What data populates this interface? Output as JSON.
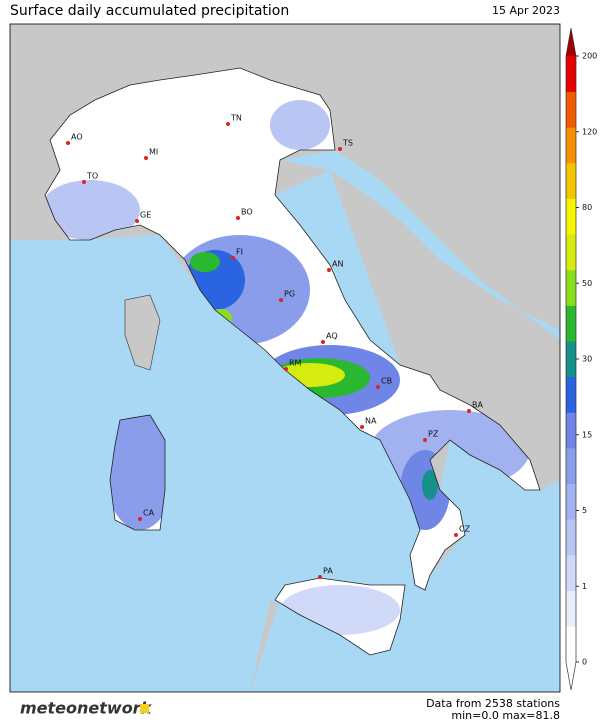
{
  "header": {
    "title": "Surface daily accumulated precipitation",
    "date": "15 Apr 2023"
  },
  "cities": [
    "AO",
    "TO",
    "MI",
    "TN",
    "TS",
    "GE",
    "BO",
    "FI",
    "AN",
    "PG",
    "AQ",
    "RM",
    "CB",
    "BA",
    "NA",
    "PZ",
    "CZ",
    "CA",
    "PA"
  ],
  "colorbar": {
    "ticks": [
      0,
      1,
      5,
      15,
      30,
      50,
      80,
      120,
      200
    ],
    "colors": [
      "#ffffff",
      "#e8eefc",
      "#d0daf8",
      "#b9c6f4",
      "#a2b2f0",
      "#8a9deb",
      "#6f86e7",
      "#2a64e0",
      "#15908a",
      "#2ab830",
      "#8ade1e",
      "#d6eb10",
      "#f5f500",
      "#f5c400",
      "#f59000",
      "#f05a00",
      "#e60000"
    ],
    "over_color": "#a00000"
  },
  "footer": {
    "logo": "meteonetwork",
    "stations": "Data from 2538 stations",
    "range": "min=0.0 max=81.8"
  }
}
